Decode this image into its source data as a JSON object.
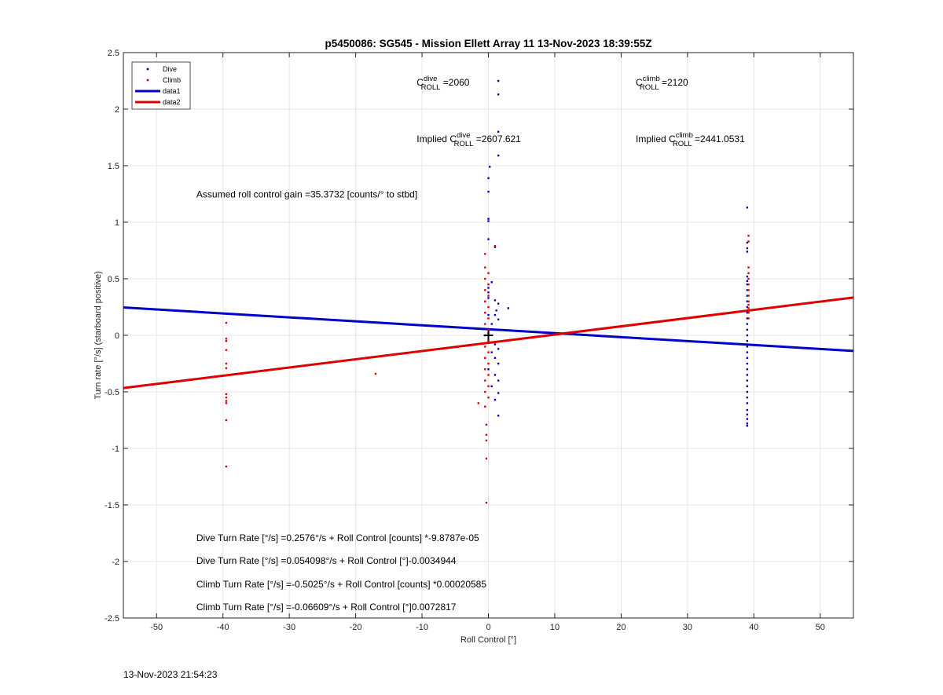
{
  "timestamp": "13-Nov-2023 21:54:23",
  "chart_data": {
    "type": "scatter",
    "title": "p5450086: SG545 - Mission Ellett Array 11 13-Nov-2023 18:39:55Z",
    "xlabel": "Roll Control [°]",
    "ylabel": "Turn rate [°/s] (starboard positive)",
    "xlim": [
      -55,
      55
    ],
    "ylim": [
      -2.5,
      2.5
    ],
    "xticks": [
      -50,
      -40,
      -30,
      -20,
      -10,
      0,
      10,
      20,
      30,
      40,
      50
    ],
    "xtick_labels": [
      "-50",
      "-40",
      "-30",
      "-20",
      "-10",
      "0",
      "10",
      "20",
      "30",
      "40",
      "50"
    ],
    "yticks": [
      -2.5,
      -2,
      -1.5,
      -1,
      -0.5,
      0,
      0.5,
      1,
      1.5,
      2,
      2.5
    ],
    "ytick_labels": [
      "-2.5",
      "-2",
      "-1.5",
      "-1",
      "-0.5",
      "0",
      "0.5",
      "1",
      "1.5",
      "2",
      "2.5"
    ],
    "grid": true,
    "legend_position": "top-left",
    "colors": {
      "dive": "#0000cc",
      "climb": "#dd0000",
      "grid": "#e6e6e6",
      "axis": "#262626"
    },
    "series": [
      {
        "name": "Dive",
        "kind": "points",
        "color": "#0000cc",
        "points": [
          [
            1.5,
            2.25
          ],
          [
            1.5,
            2.13
          ],
          [
            1.5,
            1.8
          ],
          [
            1.5,
            1.59
          ],
          [
            0.2,
            1.49
          ],
          [
            0.0,
            1.39
          ],
          [
            0.0,
            1.27
          ],
          [
            0.0,
            1.03
          ],
          [
            0.0,
            1.01
          ],
          [
            0.0,
            0.85
          ],
          [
            1.0,
            0.78
          ],
          [
            0.5,
            0.47
          ],
          [
            0.0,
            0.42
          ],
          [
            0.0,
            0.38
          ],
          [
            0.0,
            0.33
          ],
          [
            1.0,
            0.31
          ],
          [
            1.5,
            0.28
          ],
          [
            1.2,
            0.22
          ],
          [
            1.0,
            0.18
          ],
          [
            1.5,
            0.14
          ],
          [
            3.0,
            0.24
          ],
          [
            0.0,
            0.18
          ],
          [
            0.5,
            0.1
          ],
          [
            1.0,
            0.05
          ],
          [
            0.0,
            0.02
          ],
          [
            0.0,
            -0.05
          ],
          [
            1.0,
            -0.08
          ],
          [
            1.5,
            -0.12
          ],
          [
            0.5,
            -0.15
          ],
          [
            1.0,
            -0.2
          ],
          [
            1.5,
            -0.25
          ],
          [
            0.0,
            -0.3
          ],
          [
            1.0,
            -0.35
          ],
          [
            1.5,
            -0.4
          ],
          [
            0.5,
            -0.45
          ],
          [
            1.5,
            -0.51
          ],
          [
            1.0,
            -0.57
          ],
          [
            1.5,
            -0.71
          ],
          [
            39,
            1.13
          ],
          [
            39,
            0.82
          ],
          [
            39,
            0.77
          ],
          [
            39,
            0.74
          ],
          [
            39,
            0.52
          ],
          [
            39,
            0.48
          ],
          [
            39,
            0.45
          ],
          [
            39,
            0.4
          ],
          [
            39,
            0.35
          ],
          [
            39,
            0.3
          ],
          [
            39,
            0.25
          ],
          [
            39,
            0.2
          ],
          [
            39,
            0.15
          ],
          [
            39,
            0.1
          ],
          [
            39,
            0.05
          ],
          [
            39,
            0.0
          ],
          [
            39,
            -0.05
          ],
          [
            39,
            -0.1
          ],
          [
            39,
            -0.15
          ],
          [
            39,
            -0.2
          ],
          [
            39,
            -0.25
          ],
          [
            39,
            -0.3
          ],
          [
            39,
            -0.35
          ],
          [
            39,
            -0.4
          ],
          [
            39,
            -0.45
          ],
          [
            39,
            -0.5
          ],
          [
            39,
            -0.55
          ],
          [
            39,
            -0.6
          ],
          [
            39,
            -0.66
          ],
          [
            39,
            -0.7
          ],
          [
            39,
            -0.74
          ],
          [
            39,
            -0.78
          ],
          [
            39,
            -0.8
          ]
        ]
      },
      {
        "name": "Climb",
        "kind": "points",
        "color": "#dd0000",
        "points": [
          [
            -39.5,
            0.11
          ],
          [
            -39.5,
            -0.03
          ],
          [
            -39.5,
            -0.05
          ],
          [
            -39.5,
            -0.13
          ],
          [
            -39.5,
            -0.25
          ],
          [
            -39.5,
            -0.29
          ],
          [
            -39.5,
            -0.52
          ],
          [
            -39.5,
            -0.55
          ],
          [
            -39.5,
            -0.58
          ],
          [
            -39.5,
            -0.6
          ],
          [
            -39.5,
            -0.75
          ],
          [
            -39.5,
            -1.16
          ],
          [
            -17,
            -0.34
          ],
          [
            1.0,
            0.79
          ],
          [
            -0.5,
            0.72
          ],
          [
            -0.5,
            0.6
          ],
          [
            0.0,
            0.55
          ],
          [
            -0.5,
            0.5
          ],
          [
            0.0,
            0.45
          ],
          [
            -0.5,
            0.4
          ],
          [
            0.0,
            0.35
          ],
          [
            -0.5,
            0.3
          ],
          [
            0.0,
            0.25
          ],
          [
            -0.5,
            0.2
          ],
          [
            0.0,
            0.15
          ],
          [
            -0.5,
            0.1
          ],
          [
            0.0,
            0.05
          ],
          [
            -0.5,
            0.0
          ],
          [
            0.0,
            -0.05
          ],
          [
            -0.5,
            -0.1
          ],
          [
            0.0,
            -0.15
          ],
          [
            -0.5,
            -0.2
          ],
          [
            0.0,
            -0.25
          ],
          [
            -0.5,
            -0.3
          ],
          [
            0.0,
            -0.35
          ],
          [
            -0.5,
            -0.4
          ],
          [
            0.0,
            -0.45
          ],
          [
            -0.5,
            -0.5
          ],
          [
            0.0,
            -0.55
          ],
          [
            -1.5,
            -0.6
          ],
          [
            -0.5,
            -0.63
          ],
          [
            -0.3,
            -0.79
          ],
          [
            -0.3,
            -0.88
          ],
          [
            -0.3,
            -0.93
          ],
          [
            -0.3,
            -1.09
          ],
          [
            -0.3,
            -1.48
          ],
          [
            39.2,
            0.88
          ],
          [
            39.2,
            0.83
          ],
          [
            39.2,
            0.6
          ],
          [
            39.2,
            0.55
          ],
          [
            39.2,
            0.5
          ],
          [
            39.2,
            0.45
          ],
          [
            39.2,
            0.4
          ],
          [
            39.2,
            0.35
          ],
          [
            39.2,
            0.3
          ],
          [
            39.2,
            0.27
          ],
          [
            39.2,
            0.24
          ],
          [
            39.2,
            0.2
          ],
          [
            39.2,
            0.15
          ]
        ]
      },
      {
        "name": "data1",
        "kind": "line",
        "color": "#0000cc",
        "x": [
          -55,
          55
        ],
        "y": [
          0.2462,
          -0.1382
        ]
      },
      {
        "name": "data2",
        "kind": "line",
        "color": "#dd0000",
        "x": [
          -55,
          55
        ],
        "y": [
          -0.4665,
          0.3344
        ]
      }
    ],
    "marker": {
      "x": 0,
      "y": 0,
      "symbol": "+",
      "color": "#000000"
    },
    "annotations": {
      "c_dive": {
        "base": "C",
        "sup": "dive",
        "sub": "ROLL",
        "suffix": " =2060",
        "x": -10.8,
        "y": 2.21
      },
      "c_climb": {
        "base": "C",
        "sup": "climb",
        "sub": "ROLL",
        "suffix": " =2120",
        "x": 22.2,
        "y": 2.21
      },
      "implied_dive": {
        "prefix": "Implied ",
        "base": "C",
        "sup": "dive",
        "sub": "ROLL",
        "suffix": " =2607.621",
        "x": -10.8,
        "y": 1.71
      },
      "implied_climb": {
        "prefix": "Implied ",
        "base": "C",
        "sup": "climb",
        "sub": "ROLL",
        "suffix": " =2441.0531",
        "x": 22.2,
        "y": 1.71
      },
      "gain": {
        "text": "Assumed roll control gain =35.3732 [counts/° to stbd]",
        "x": -44,
        "y": 1.22
      },
      "eq1": {
        "text": "Dive Turn Rate [°/s] =0.2576°/s + Roll Control [counts] *-9.8787e-05",
        "x": -44,
        "y": -1.82
      },
      "eq2": {
        "text": "Dive Turn Rate [°/s] =0.054098°/s + Roll Control [°]-0.0034944",
        "x": -44,
        "y": -2.02
      },
      "eq3": {
        "text": "Climb Turn Rate [°/s] =-0.5025°/s + Roll Control [counts] *0.00020585",
        "x": -44,
        "y": -2.23
      },
      "eq4": {
        "text": "Climb Turn Rate [°/s] =-0.06609°/s + Roll Control [°]0.0072817",
        "x": -44,
        "y": -2.43
      }
    },
    "legend": [
      {
        "label": "Dive",
        "kind": "point",
        "color": "#0000cc"
      },
      {
        "label": "Climb",
        "kind": "point",
        "color": "#dd0000"
      },
      {
        "label": "data1",
        "kind": "line",
        "color": "#0000cc"
      },
      {
        "label": "data2",
        "kind": "line",
        "color": "#dd0000"
      }
    ]
  }
}
